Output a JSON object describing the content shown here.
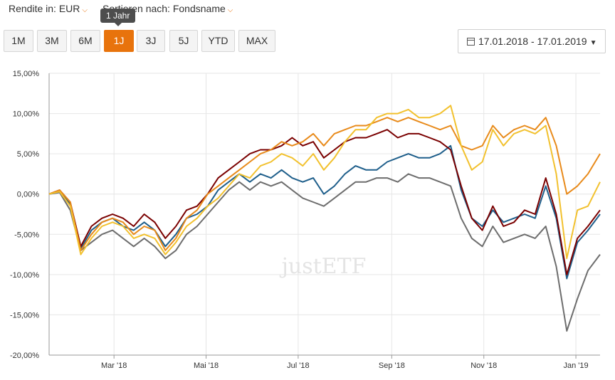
{
  "controls": {
    "currency_label": "Rendite in: EUR",
    "sort_label": "Sortieren nach: Fondsname",
    "tooltip": "1 Jahr",
    "periods": [
      "1M",
      "3M",
      "6M",
      "1J",
      "3J",
      "5J",
      "YTD",
      "MAX"
    ],
    "active_period": "1J",
    "date_range": "17.01.2018 - 17.01.2019"
  },
  "watermark": "justETF",
  "colors": {
    "accent": "#e8730c",
    "series": [
      "#7a0000",
      "#1f5f8b",
      "#e88a1a",
      "#f2c12e",
      "#6d6d6d"
    ]
  },
  "chart_data": {
    "type": "line",
    "title": "",
    "xlabel": "",
    "ylabel": "",
    "ylim": [
      -20,
      15
    ],
    "yticks": [
      15,
      10,
      5,
      0,
      -5,
      -10,
      -15,
      -20
    ],
    "ytick_labels": [
      "15,00%",
      "10,00%",
      "5,00%",
      "0,00%",
      "-5,00%",
      "-10,00%",
      "-15,00%",
      "-20,00%"
    ],
    "xlim": [
      "2018-01-17",
      "2019-01-17"
    ],
    "xticks": [
      {
        "date": "2018-03-01",
        "label": "Mar '18"
      },
      {
        "date": "2018-05-01",
        "label": "Mai '18"
      },
      {
        "date": "2018-07-01",
        "label": "Jul '18"
      },
      {
        "date": "2018-09-01",
        "label": "Sep '18"
      },
      {
        "date": "2018-11-01",
        "label": "Nov '18"
      },
      {
        "date": "2019-01-01",
        "label": "Jan '19"
      }
    ],
    "grid": true,
    "x": [
      "2018-01-17",
      "2018-01-24",
      "2018-01-31",
      "2018-02-07",
      "2018-02-14",
      "2018-02-21",
      "2018-02-28",
      "2018-03-07",
      "2018-03-14",
      "2018-03-21",
      "2018-03-28",
      "2018-04-04",
      "2018-04-11",
      "2018-04-18",
      "2018-04-25",
      "2018-05-02",
      "2018-05-09",
      "2018-05-16",
      "2018-05-23",
      "2018-05-30",
      "2018-06-06",
      "2018-06-13",
      "2018-06-20",
      "2018-06-27",
      "2018-07-04",
      "2018-07-11",
      "2018-07-18",
      "2018-07-25",
      "2018-08-01",
      "2018-08-08",
      "2018-08-15",
      "2018-08-22",
      "2018-08-29",
      "2018-09-05",
      "2018-09-12",
      "2018-09-19",
      "2018-09-26",
      "2018-10-03",
      "2018-10-10",
      "2018-10-17",
      "2018-10-24",
      "2018-10-31",
      "2018-11-07",
      "2018-11-14",
      "2018-11-21",
      "2018-11-28",
      "2018-12-05",
      "2018-12-12",
      "2018-12-19",
      "2018-12-26",
      "2019-01-02",
      "2019-01-09",
      "2019-01-17"
    ],
    "series": [
      {
        "values": [
          0.0,
          0.5,
          -1.0,
          -6.5,
          -4.0,
          -3.0,
          -2.5,
          -3.0,
          -4.0,
          -2.5,
          -3.5,
          -5.5,
          -4.0,
          -2.0,
          -1.5,
          0.0,
          2.0,
          3.0,
          4.0,
          5.0,
          5.5,
          5.5,
          6.0,
          7.0,
          6.0,
          6.5,
          4.5,
          5.5,
          6.5,
          7.0,
          7.0,
          7.5,
          8.0,
          7.0,
          7.5,
          7.5,
          7.0,
          6.5,
          5.5,
          1.0,
          -3.0,
          -4.5,
          -1.5,
          -4.0,
          -3.5,
          -2.0,
          -2.5,
          2.0,
          -2.5,
          -10.0,
          -5.5,
          -4.0,
          -2.0
        ]
      },
      {
        "values": [
          0.0,
          0.3,
          -1.2,
          -6.8,
          -4.5,
          -3.5,
          -3.0,
          -4.0,
          -4.5,
          -3.5,
          -4.5,
          -6.5,
          -5.0,
          -3.0,
          -2.5,
          -1.5,
          0.5,
          1.5,
          2.5,
          1.5,
          2.5,
          2.0,
          3.0,
          2.0,
          1.5,
          2.0,
          0.0,
          1.0,
          2.5,
          3.5,
          3.0,
          3.0,
          4.0,
          4.5,
          5.0,
          4.5,
          4.5,
          5.0,
          6.0,
          0.5,
          -3.0,
          -4.0,
          -2.0,
          -3.5,
          -3.0,
          -2.5,
          -3.0,
          1.0,
          -3.0,
          -10.5,
          -6.0,
          -4.5,
          -2.5
        ]
      },
      {
        "values": [
          0.0,
          0.5,
          -1.0,
          -7.0,
          -5.0,
          -3.5,
          -3.0,
          -3.5,
          -5.0,
          -4.0,
          -4.5,
          -7.0,
          -5.5,
          -3.0,
          -2.0,
          0.0,
          1.0,
          2.0,
          3.0,
          4.0,
          5.0,
          5.5,
          6.5,
          6.0,
          6.5,
          7.5,
          6.0,
          7.5,
          8.0,
          8.5,
          8.5,
          9.0,
          9.5,
          9.0,
          9.5,
          9.0,
          8.5,
          8.0,
          8.5,
          6.0,
          5.5,
          6.0,
          8.5,
          7.0,
          8.0,
          8.5,
          8.0,
          9.5,
          6.0,
          0.0,
          1.0,
          2.5,
          5.0
        ]
      },
      {
        "values": [
          0.0,
          0.3,
          -1.5,
          -7.5,
          -5.5,
          -4.0,
          -3.5,
          -4.0,
          -5.5,
          -5.0,
          -5.5,
          -7.5,
          -6.0,
          -4.0,
          -3.0,
          -1.5,
          -0.5,
          1.0,
          2.5,
          2.0,
          3.5,
          4.0,
          5.0,
          4.5,
          3.5,
          5.0,
          3.0,
          4.5,
          6.5,
          8.0,
          8.0,
          9.5,
          10.0,
          10.0,
          10.5,
          9.5,
          9.5,
          10.0,
          11.0,
          6.0,
          3.0,
          4.0,
          8.0,
          6.0,
          7.5,
          8.0,
          7.5,
          8.5,
          2.5,
          -8.0,
          -2.0,
          -1.5,
          1.5
        ]
      },
      {
        "values": [
          0.0,
          0.2,
          -2.0,
          -7.0,
          -6.0,
          -5.0,
          -4.5,
          -5.5,
          -6.5,
          -5.5,
          -6.5,
          -8.0,
          -7.0,
          -5.0,
          -4.0,
          -2.5,
          -1.0,
          0.5,
          1.5,
          0.5,
          1.5,
          1.0,
          1.5,
          0.5,
          -0.5,
          -1.0,
          -1.5,
          -0.5,
          0.5,
          1.5,
          1.5,
          2.0,
          2.0,
          1.5,
          2.5,
          2.0,
          2.0,
          1.5,
          1.0,
          -3.0,
          -5.5,
          -6.5,
          -4.0,
          -6.0,
          -5.5,
          -5.0,
          -5.5,
          -4.0,
          -9.0,
          -17.0,
          -13.0,
          -9.5,
          -7.5
        ]
      }
    ]
  }
}
